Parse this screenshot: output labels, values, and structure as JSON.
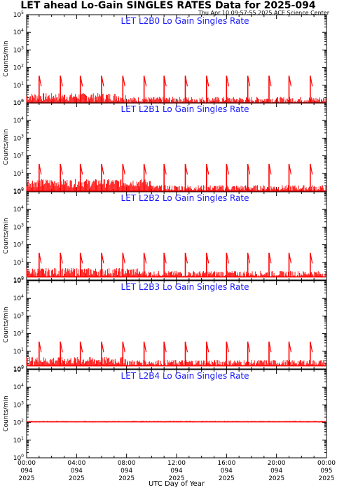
{
  "header": {
    "title": "LET ahead Lo-Gain SINGLES RATES Data for 2025-094",
    "timestamp": "Thu Apr 10 09:57:55 2025 ACE Science Center"
  },
  "x_axis": {
    "label": "UTC Day of Year",
    "ticks": [
      {
        "time": "00:00",
        "day": "094",
        "year": "2025"
      },
      {
        "time": "04:00",
        "day": "094",
        "year": "2025"
      },
      {
        "time": "08:00",
        "day": "094",
        "year": "2025"
      },
      {
        "time": "12:00",
        "day": "094",
        "year": "2025"
      },
      {
        "time": "16:00",
        "day": "094",
        "year": "2025"
      },
      {
        "time": "20:00",
        "day": "094",
        "year": "2025"
      },
      {
        "time": "00:00",
        "day": "095",
        "year": "2025"
      }
    ]
  },
  "colors": {
    "data": "#ff0000",
    "panel_title": "#1a1aff",
    "axes": "#000000"
  },
  "chart_data": [
    {
      "type": "line",
      "title": "LET L2B0 Lo Gain Singles Rate",
      "ylabel": "Counts/min",
      "yscale": "log",
      "ylim": [
        1,
        100000
      ],
      "yticks": [
        "10^0",
        "10^1",
        "10^2",
        "10^3",
        "10^4",
        "10^5"
      ],
      "xlim_hours": [
        0,
        24
      ],
      "baseline_counts": 1,
      "early_noise_counts": 3,
      "early_noise_until_hour": 8,
      "spike_peak_counts": 35,
      "spike_hours": [
        1.0,
        2.7,
        4.3,
        6.0,
        7.7,
        9.4,
        11.0,
        12.7,
        14.4,
        16.0,
        17.7,
        19.4,
        21.0,
        22.7
      ]
    },
    {
      "type": "line",
      "title": "LET L2B1 Lo Gain Singles Rate",
      "ylabel": "Counts/min",
      "yscale": "log",
      "ylim": [
        1,
        100000
      ],
      "yticks": [
        "10^0",
        "10^1",
        "10^2",
        "10^3",
        "10^4",
        "10^5"
      ],
      "xlim_hours": [
        0,
        24
      ],
      "baseline_counts": 1,
      "early_noise_counts": 4,
      "early_noise_until_hour": 10,
      "spike_peak_counts": 35,
      "spike_hours": [
        1.0,
        2.7,
        4.3,
        6.0,
        7.7,
        9.4,
        11.0,
        12.7,
        14.4,
        16.0,
        17.7,
        19.4,
        21.0,
        22.7
      ]
    },
    {
      "type": "line",
      "title": "LET L2B2 Lo Gain Singles Rate",
      "ylabel": "Counts/min",
      "yscale": "log",
      "ylim": [
        1,
        100000
      ],
      "yticks": [
        "10^0",
        "10^1",
        "10^2",
        "10^3",
        "10^4",
        "10^5"
      ],
      "xlim_hours": [
        0,
        24
      ],
      "baseline_counts": 1.5,
      "early_noise_counts": 4,
      "early_noise_until_hour": 9,
      "spike_peak_counts": 35,
      "spike_hours": [
        1.0,
        2.7,
        4.3,
        6.0,
        7.7,
        9.4,
        11.0,
        12.7,
        14.4,
        16.0,
        17.7,
        19.4,
        21.0,
        22.7
      ]
    },
    {
      "type": "line",
      "title": "LET L2B3 Lo Gain Singles Rate",
      "ylabel": "Counts/min",
      "yscale": "log",
      "ylim": [
        1,
        100000
      ],
      "yticks": [
        "10^0",
        "10^1",
        "10^2",
        "10^3",
        "10^4",
        "10^5"
      ],
      "xlim_hours": [
        0,
        24
      ],
      "baseline_counts": 1.5,
      "early_noise_counts": 4,
      "early_noise_until_hour": 8,
      "spike_peak_counts": 35,
      "spike_hours": [
        1.0,
        2.7,
        4.3,
        6.0,
        7.7,
        9.4,
        11.0,
        12.7,
        14.4,
        16.0,
        17.7,
        19.4,
        21.0,
        22.7
      ]
    },
    {
      "type": "line",
      "title": "LET L2B4 Lo Gain Singles Rate",
      "ylabel": "Counts/min",
      "yscale": "log",
      "ylim": [
        1,
        100000
      ],
      "yticks": [
        "10^0",
        "10^1",
        "10^2",
        "10^3",
        "10^4",
        "10^5"
      ],
      "xlim_hours": [
        0,
        24
      ],
      "baseline_counts": 110,
      "early_noise_counts": 110,
      "early_noise_until_hour": 0,
      "spike_peak_counts": 125,
      "spike_hours": []
    }
  ]
}
